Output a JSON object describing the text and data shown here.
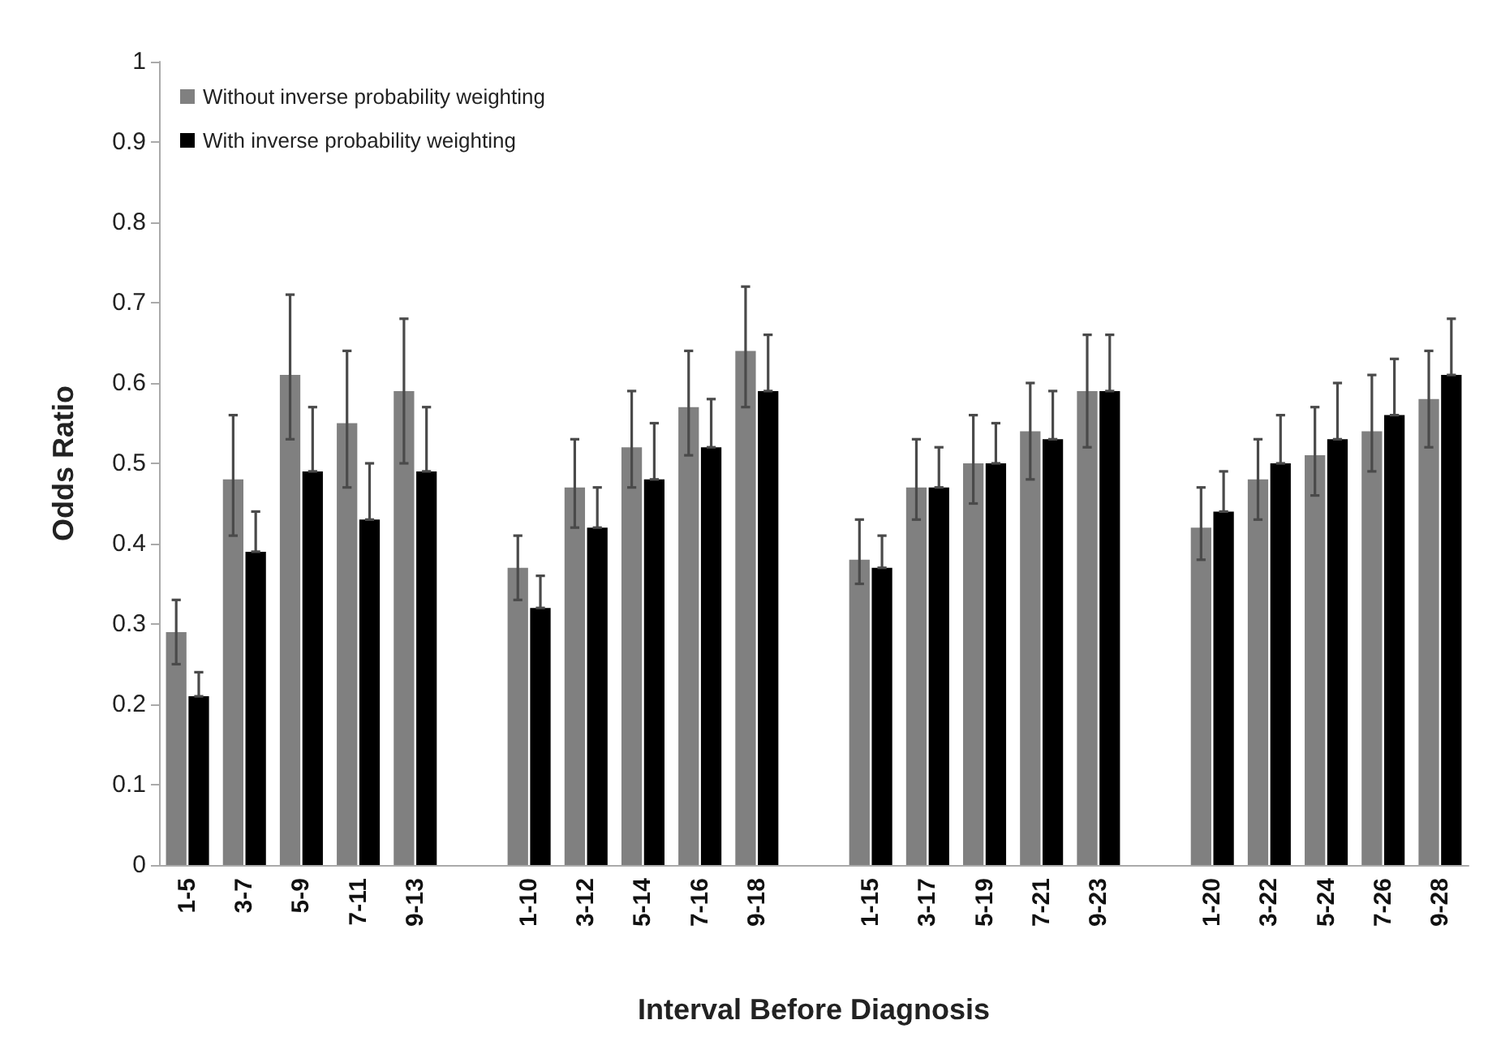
{
  "chart_data": {
    "type": "bar",
    "xlabel": "Interval Before Diagnosis",
    "ylabel": "Odds Ratio",
    "categories": [
      "1-5",
      "3-7",
      "5-9",
      "7-11",
      "9-13",
      null,
      "1-10",
      "3-12",
      "5-14",
      "7-16",
      "9-18",
      null,
      "1-15",
      "3-17",
      "5-19",
      "7-21",
      "9-23",
      null,
      "1-20",
      "3-22",
      "5-24",
      "7-26",
      "9-28"
    ],
    "series": [
      {
        "name": "Without inverse probability weighting",
        "color": "#808080",
        "values": [
          0.29,
          0.48,
          0.61,
          0.55,
          0.59,
          null,
          0.37,
          0.47,
          0.52,
          0.57,
          0.64,
          null,
          0.38,
          0.47,
          0.5,
          0.54,
          0.59,
          null,
          0.42,
          0.48,
          0.51,
          0.54,
          0.58
        ],
        "errors": [
          [
            0.25,
            0.33
          ],
          [
            0.41,
            0.56
          ],
          [
            0.53,
            0.71
          ],
          [
            0.47,
            0.64
          ],
          [
            0.5,
            0.68
          ],
          null,
          [
            0.33,
            0.41
          ],
          [
            0.42,
            0.53
          ],
          [
            0.47,
            0.59
          ],
          [
            0.51,
            0.64
          ],
          [
            0.57,
            0.72
          ],
          null,
          [
            0.35,
            0.43
          ],
          [
            0.43,
            0.53
          ],
          [
            0.45,
            0.56
          ],
          [
            0.48,
            0.6
          ],
          [
            0.52,
            0.66
          ],
          null,
          [
            0.38,
            0.47
          ],
          [
            0.43,
            0.53
          ],
          [
            0.46,
            0.57
          ],
          [
            0.49,
            0.61
          ],
          [
            0.52,
            0.64
          ]
        ]
      },
      {
        "name": "With inverse probability weighting",
        "color": "#000000",
        "values": [
          0.21,
          0.39,
          0.49,
          0.43,
          0.49,
          null,
          0.32,
          0.42,
          0.48,
          0.52,
          0.59,
          null,
          0.37,
          0.47,
          0.5,
          0.53,
          0.59,
          null,
          0.44,
          0.5,
          0.53,
          0.56,
          0.61
        ],
        "errors": [
          [
            0.21,
            0.24
          ],
          [
            0.39,
            0.44
          ],
          [
            0.49,
            0.57
          ],
          [
            0.43,
            0.5
          ],
          [
            0.49,
            0.57
          ],
          null,
          [
            0.32,
            0.36
          ],
          [
            0.42,
            0.47
          ],
          [
            0.48,
            0.55
          ],
          [
            0.52,
            0.58
          ],
          [
            0.59,
            0.66
          ],
          null,
          [
            0.37,
            0.41
          ],
          [
            0.47,
            0.52
          ],
          [
            0.5,
            0.55
          ],
          [
            0.53,
            0.59
          ],
          [
            0.59,
            0.66
          ],
          null,
          [
            0.44,
            0.49
          ],
          [
            0.5,
            0.56
          ],
          [
            0.53,
            0.6
          ],
          [
            0.56,
            0.63
          ],
          [
            0.61,
            0.68
          ]
        ]
      }
    ],
    "ylim": [
      0,
      1
    ],
    "yticks": [
      0,
      0.1,
      0.2,
      0.3,
      0.4,
      0.5,
      0.6,
      0.7,
      0.8,
      0.9,
      1
    ],
    "grid": false,
    "legend": "top left"
  }
}
